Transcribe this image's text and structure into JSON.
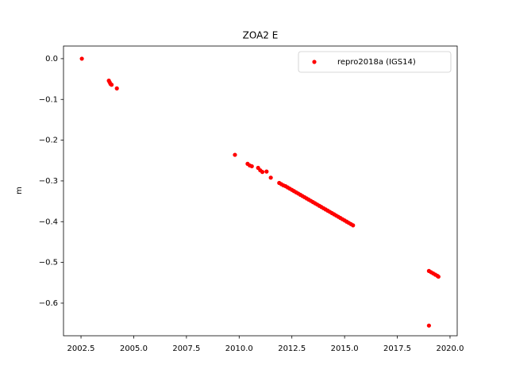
{
  "chart_data": {
    "type": "scatter",
    "title": "ZOA2 E",
    "y_label": "m",
    "legend_position": "upper right",
    "x": [
      2002.54,
      2003.82,
      2003.86,
      2003.9,
      2003.95,
      2004.2,
      2009.8,
      2010.4,
      2010.5,
      2010.6,
      2010.9,
      2011.0,
      2011.1,
      2011.3,
      2011.5,
      2011.9,
      2012.0,
      2012.1,
      2012.2,
      2012.3,
      2012.4,
      2012.5,
      2012.6,
      2012.7,
      2012.8,
      2012.9,
      2013.0,
      2013.1,
      2013.2,
      2013.3,
      2013.4,
      2013.5,
      2013.6,
      2013.7,
      2013.8,
      2013.9,
      2014.0,
      2014.1,
      2014.2,
      2014.3,
      2014.4,
      2014.5,
      2014.6,
      2014.7,
      2014.8,
      2014.9,
      2015.0,
      2015.1,
      2015.2,
      2015.3,
      2015.4,
      2019.0,
      2019.1,
      2019.2,
      2019.3,
      2019.4,
      2019.45,
      2019.0
    ],
    "series": [
      {
        "name": "repro2018a (IGS14)",
        "color": "#ff0000",
        "values": [
          0.0,
          -0.054,
          -0.058,
          -0.062,
          -0.064,
          -0.073,
          -0.236,
          -0.258,
          -0.262,
          -0.264,
          -0.268,
          -0.274,
          -0.278,
          -0.277,
          -0.292,
          -0.305,
          -0.308,
          -0.311,
          -0.313,
          -0.316,
          -0.319,
          -0.322,
          -0.325,
          -0.328,
          -0.331,
          -0.334,
          -0.337,
          -0.34,
          -0.343,
          -0.346,
          -0.349,
          -0.352,
          -0.355,
          -0.358,
          -0.361,
          -0.364,
          -0.367,
          -0.37,
          -0.373,
          -0.376,
          -0.379,
          -0.382,
          -0.385,
          -0.388,
          -0.391,
          -0.394,
          -0.397,
          -0.4,
          -0.403,
          -0.406,
          -0.409,
          -0.521,
          -0.524,
          -0.527,
          -0.53,
          -0.533,
          -0.535,
          -0.655
        ]
      }
    ],
    "xlim": [
      2001.67,
      2020.34
    ],
    "ylim": [
      -0.68,
      0.031
    ],
    "xticks": [
      {
        "value": 2002.5,
        "label": "2002.5"
      },
      {
        "value": 2005,
        "label": "2005.0"
      },
      {
        "value": 2007.5,
        "label": "2007.5"
      },
      {
        "value": 2010,
        "label": "2010.0"
      },
      {
        "value": 2012.5,
        "label": "2012.5"
      },
      {
        "value": 2015,
        "label": "2015.0"
      },
      {
        "value": 2017.5,
        "label": "2017.5"
      },
      {
        "value": 2020,
        "label": "2020.0"
      }
    ],
    "yticks": [
      {
        "value": 0,
        "label": "0.0"
      },
      {
        "value": -0.1,
        "label": "−0.1"
      },
      {
        "value": -0.2,
        "label": "−0.2"
      },
      {
        "value": -0.3,
        "label": "−0.3"
      },
      {
        "value": -0.4,
        "label": "−0.4"
      },
      {
        "value": -0.5,
        "label": "−0.5"
      },
      {
        "value": -0.6,
        "label": "−0.6"
      }
    ]
  }
}
